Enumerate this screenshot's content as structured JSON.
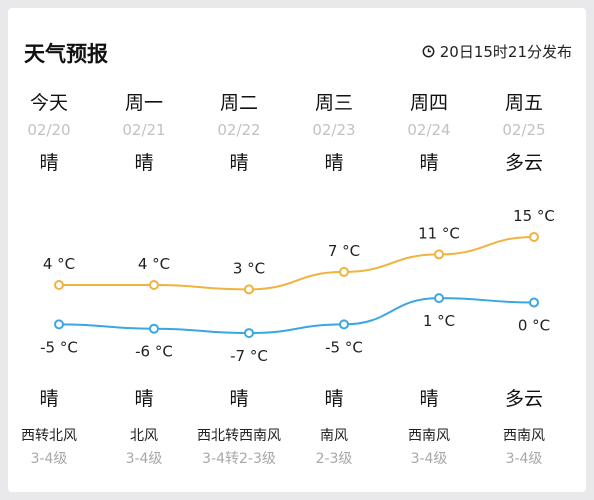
{
  "header": {
    "title": "天气预报",
    "publish_time": "20日15时21分发布"
  },
  "days": [
    {
      "label": "今天",
      "date": "02/20",
      "weather_day": "晴",
      "weather_night": "晴",
      "high": "4 °C",
      "low": "-5 °C",
      "wind": "西转北风",
      "wind_level": "3-4级"
    },
    {
      "label": "周一",
      "date": "02/21",
      "weather_day": "晴",
      "weather_night": "晴",
      "high": "4 °C",
      "low": "-6 °C",
      "wind": "北风",
      "wind_level": "3-4级"
    },
    {
      "label": "周二",
      "date": "02/22",
      "weather_day": "晴",
      "weather_night": "晴",
      "high": "3 °C",
      "low": "-7 °C",
      "wind": "西北转西南风",
      "wind_level": "3-4转2-3级"
    },
    {
      "label": "周三",
      "date": "02/23",
      "weather_day": "晴",
      "weather_night": "晴",
      "high": "7 °C",
      "low": "-5 °C",
      "wind": "南风",
      "wind_level": "2-3级"
    },
    {
      "label": "周四",
      "date": "02/24",
      "weather_day": "晴",
      "weather_night": "晴",
      "high": "11 °C",
      "low": "1 °C",
      "wind": "西南风",
      "wind_level": "3-4级"
    },
    {
      "label": "周五",
      "date": "02/25",
      "weather_day": "多云",
      "weather_night": "多云",
      "high": "15 °C",
      "low": "0 °C",
      "wind": "西南风",
      "wind_level": "3-4级"
    }
  ],
  "chart_data": {
    "type": "line",
    "categories": [
      "今天",
      "周一",
      "周二",
      "周三",
      "周四",
      "周五"
    ],
    "series": [
      {
        "values": [
          4,
          4,
          3,
          7,
          11,
          15
        ],
        "color": "#f0b33e"
      },
      {
        "values": [
          -5,
          -6,
          -7,
          -5,
          1,
          0
        ],
        "color": "#3aa7e3"
      }
    ]
  },
  "icons": {
    "clock": "clock-icon"
  }
}
